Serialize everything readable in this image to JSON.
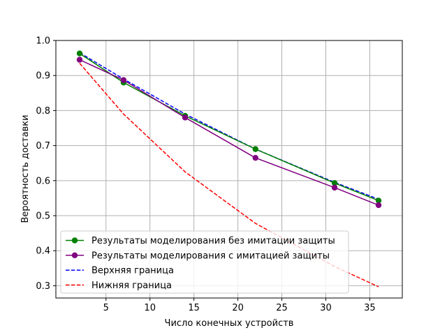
{
  "chart_data": {
    "type": "line",
    "xlabel": "Число конечных устройств",
    "ylabel": "Вероятность доставки",
    "xlim": [
      -0.7,
      38.7
    ],
    "ylim": [
      0.265,
      1.0
    ],
    "x_ticks": [
      5,
      10,
      15,
      20,
      25,
      30,
      35
    ],
    "y_ticks": [
      0.3,
      0.4,
      0.5,
      0.6,
      0.7,
      0.8,
      0.9,
      1.0
    ],
    "grid": true,
    "legend_position": "lower-left",
    "series": [
      {
        "name": "Результаты моделирования без имитации защиты",
        "color": "#008000",
        "style": "solid",
        "marker": "circle",
        "x": [
          2,
          7,
          14,
          22,
          31,
          36
        ],
        "y": [
          0.963,
          0.88,
          0.785,
          0.69,
          0.593,
          0.543
        ]
      },
      {
        "name": "Результаты моделирования  с имитацией защиты",
        "color": "#800080",
        "style": "solid",
        "marker": "circle",
        "x": [
          2,
          7,
          14,
          22,
          31,
          36
        ],
        "y": [
          0.945,
          0.887,
          0.78,
          0.665,
          0.58,
          0.53
        ]
      },
      {
        "name": "Верхняя граница",
        "color": "#0000ff",
        "style": "dashed",
        "marker": "none",
        "x": [
          2,
          7,
          14,
          22,
          31,
          36
        ],
        "y": [
          0.965,
          0.89,
          0.79,
          0.69,
          0.595,
          0.547
        ]
      },
      {
        "name": "Нижняя граница",
        "color": "#ff0000",
        "style": "dashed",
        "marker": "none",
        "x": [
          2,
          7,
          14,
          22,
          31,
          36
        ],
        "y": [
          0.935,
          0.79,
          0.625,
          0.478,
          0.355,
          0.297
        ]
      }
    ]
  }
}
